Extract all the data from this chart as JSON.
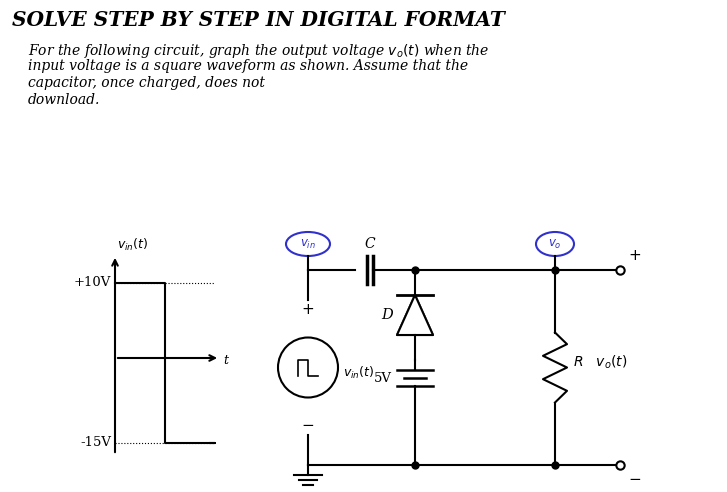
{
  "title": "SOLVE STEP BY STEP IN DIGITAL FORMAT",
  "body_lines": [
    "For the following circuit, graph the output voltage $v_o(t)$ when the",
    "input voltage is a square waveform as shown. Assume that the",
    "capacitor, once charged, does not",
    "download."
  ],
  "bg_color": "#ffffff",
  "cc": "#000000",
  "bc": "#3030cc",
  "plus10": "+10V",
  "minus15": "-15V",
  "C_label": "C",
  "D_label": "D",
  "R_label": "R",
  "fiveV_label": "5V",
  "vin_t_label": "$v_{in}(t)$",
  "vo_t_label": "$v_o(t)$",
  "t_label": "t"
}
